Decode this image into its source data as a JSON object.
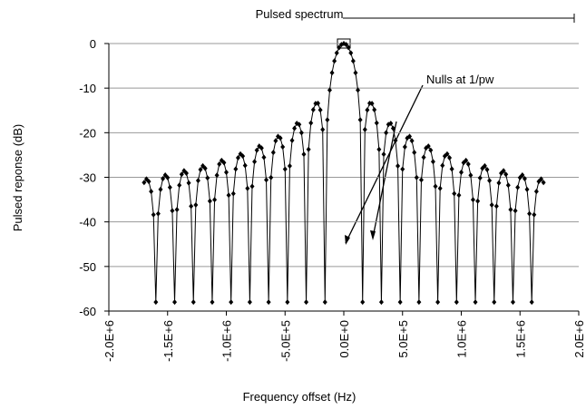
{
  "chart_data": {
    "type": "line",
    "title": "Pulsed spectrum",
    "x_label": "Frequency offset (Hz)",
    "y_label": "Pulsed reponse (dB)",
    "annotation": "Nulls at 1/pw",
    "xlim": [
      -2000000,
      2000000
    ],
    "xticks": [
      {
        "value": -2000000,
        "label": "-2.0E+6"
      },
      {
        "value": -1500000,
        "label": "-1.5E+6"
      },
      {
        "value": -1000000,
        "label": "-1.0E+6"
      },
      {
        "value": -500000,
        "label": "-5.0E+5"
      },
      {
        "value": 0,
        "label": "0.0E+0"
      },
      {
        "value": 500000,
        "label": "5.0E+5"
      },
      {
        "value": 1000000,
        "label": "1.0E+6"
      },
      {
        "value": 1500000,
        "label": "1.5E+6"
      },
      {
        "value": 2000000,
        "label": "2.0E+6"
      }
    ],
    "ylim": [
      -60,
      0
    ],
    "yticks": [
      -60,
      -50,
      -40,
      -30,
      -20,
      -10,
      0
    ],
    "grid": true,
    "series": [
      {
        "color": "#000000",
        "x": [
          -1700000,
          -1680000,
          -1660000,
          -1640000,
          -1620000,
          -1600000,
          -1580000,
          -1560000,
          -1540000,
          -1520000,
          -1500000,
          -1480000,
          -1460000,
          -1440000,
          -1420000,
          -1400000,
          -1380000,
          -1360000,
          -1340000,
          -1320000,
          -1300000,
          -1280000,
          -1260000,
          -1240000,
          -1220000,
          -1200000,
          -1180000,
          -1160000,
          -1140000,
          -1120000,
          -1100000,
          -1080000,
          -1060000,
          -1040000,
          -1020000,
          -1000000,
          -980000,
          -960000,
          -940000,
          -920000,
          -900000,
          -880000,
          -860000,
          -840000,
          -820000,
          -800000,
          -780000,
          -760000,
          -740000,
          -720000,
          -700000,
          -680000,
          -660000,
          -640000,
          -620000,
          -600000,
          -580000,
          -560000,
          -540000,
          -520000,
          -500000,
          -480000,
          -460000,
          -440000,
          -420000,
          -400000,
          -380000,
          -360000,
          -340000,
          -320000,
          -300000,
          -280000,
          -260000,
          -240000,
          -220000,
          -200000,
          -180000,
          -160000,
          -140000,
          -120000,
          -100000,
          -80000,
          -60000,
          -40000,
          -20000,
          0,
          20000,
          40000,
          60000,
          80000,
          100000,
          120000,
          140000,
          160000,
          180000,
          200000,
          220000,
          240000,
          260000,
          280000,
          300000,
          320000,
          340000,
          360000,
          380000,
          400000,
          420000,
          440000,
          460000,
          480000,
          500000,
          520000,
          540000,
          560000,
          580000,
          600000,
          620000,
          640000,
          660000,
          680000,
          700000,
          720000,
          740000,
          760000,
          780000,
          800000,
          820000,
          840000,
          860000,
          880000,
          900000,
          920000,
          940000,
          960000,
          980000,
          1000000,
          1020000,
          1040000,
          1060000,
          1080000,
          1100000,
          1120000,
          1140000,
          1160000,
          1180000,
          1200000,
          1220000,
          1240000,
          1260000,
          1280000,
          1300000,
          1320000,
          1340000,
          1360000,
          1380000,
          1400000,
          1420000,
          1440000,
          1460000,
          1480000,
          1500000,
          1520000,
          1540000,
          1560000,
          1580000,
          1600000,
          1620000,
          1640000,
          1660000,
          1680000,
          1700000
        ],
        "values": [
          -31.16,
          -30.37,
          -30.95,
          -33.17,
          -38.39,
          -58,
          -38.17,
          -32.73,
          -30.3,
          -29.5,
          -30.07,
          -32.27,
          -37.49,
          -58,
          -37.25,
          -31.79,
          -29.35,
          -28.53,
          -29.09,
          -31.28,
          -36.48,
          -58,
          -36.21,
          -30.74,
          -28.28,
          -27.44,
          -27.99,
          -30.16,
          -35.34,
          -58,
          -35.03,
          -29.54,
          -27.06,
          -26.2,
          -26.72,
          -28.87,
          -34.02,
          -58,
          -33.66,
          -28.15,
          -25.63,
          -24.75,
          -25.24,
          -27.35,
          -32.48,
          -58,
          -32.04,
          -26.49,
          -23.93,
          -23.01,
          -23.45,
          -25.52,
          -30.59,
          -58,
          -30.05,
          -24.43,
          -21.82,
          -20.82,
          -21.2,
          -23.19,
          -28.18,
          -58,
          -27.45,
          -21.74,
          -19.01,
          -17.9,
          -18.15,
          -20.0,
          -24.83,
          -58,
          -23.74,
          -17.81,
          -14.85,
          -13.46,
          -13.4,
          -14.89,
          -19.3,
          -58,
          -17.12,
          -10.45,
          -6.55,
          -3.92,
          -2.11,
          -0.91,
          -0.22,
          0,
          -0.22,
          -0.91,
          -2.11,
          -3.92,
          -6.55,
          -10.45,
          -17.12,
          -58,
          -19.3,
          -14.89,
          -13.4,
          -13.46,
          -14.85,
          -17.81,
          -23.74,
          -58,
          -24.83,
          -20.0,
          -18.15,
          -17.9,
          -19.01,
          -21.74,
          -27.45,
          -58,
          -28.18,
          -23.19,
          -21.2,
          -20.82,
          -21.82,
          -24.43,
          -30.05,
          -58,
          -30.59,
          -25.52,
          -23.45,
          -23.01,
          -23.93,
          -26.49,
          -32.04,
          -58,
          -32.48,
          -27.35,
          -25.24,
          -24.75,
          -25.63,
          -28.15,
          -33.66,
          -58,
          -34.02,
          -28.87,
          -26.72,
          -26.2,
          -27.06,
          -29.54,
          -35.03,
          -58,
          -35.34,
          -30.16,
          -27.99,
          -27.44,
          -28.28,
          -30.74,
          -36.21,
          -58,
          -36.48,
          -31.28,
          -29.09,
          -28.53,
          -29.35,
          -31.79,
          -37.25,
          -58,
          -37.49,
          -32.27,
          -30.07,
          -29.5,
          -30.3,
          -32.73,
          -38.17,
          -58,
          -38.39,
          -33.17,
          -30.95,
          -30.37,
          -31.16
        ]
      }
    ]
  }
}
